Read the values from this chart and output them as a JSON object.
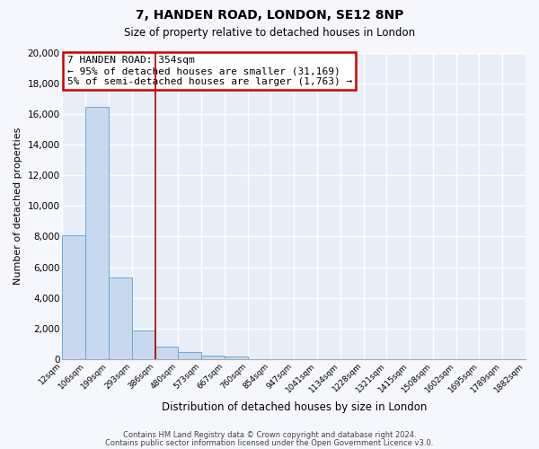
{
  "title": "7, HANDEN ROAD, LONDON, SE12 8NP",
  "subtitle": "Size of property relative to detached houses in London",
  "xlabel": "Distribution of detached houses by size in London",
  "ylabel": "Number of detached properties",
  "bar_color": "#c8d8ee",
  "bar_edge_color": "#6aaad4",
  "plot_bg_color": "#e8eef8",
  "fig_bg_color": "#f5f7fc",
  "grid_color": "#ffffff",
  "bin_labels": [
    "12sqm",
    "106sqm",
    "199sqm",
    "293sqm",
    "386sqm",
    "480sqm",
    "573sqm",
    "667sqm",
    "760sqm",
    "854sqm",
    "947sqm",
    "1041sqm",
    "1134sqm",
    "1228sqm",
    "1321sqm",
    "1415sqm",
    "1508sqm",
    "1602sqm",
    "1695sqm",
    "1789sqm",
    "1882sqm"
  ],
  "bar_values": [
    8100,
    16500,
    5300,
    1850,
    800,
    430,
    230,
    180,
    0,
    0,
    0,
    0,
    0,
    0,
    0,
    0,
    0,
    0,
    0,
    0
  ],
  "red_line_bin": 4,
  "ylim": [
    0,
    20000
  ],
  "yticks": [
    0,
    2000,
    4000,
    6000,
    8000,
    10000,
    12000,
    14000,
    16000,
    18000,
    20000
  ],
  "annotation_title": "7 HANDEN ROAD: 354sqm",
  "annotation_line1": "← 95% of detached houses are smaller (31,169)",
  "annotation_line2": "5% of semi-detached houses are larger (1,763) →",
  "annotation_box_color": "#ffffff",
  "annotation_box_edge": "#cc0000",
  "footer1": "Contains HM Land Registry data © Crown copyright and database right 2024.",
  "footer2": "Contains public sector information licensed under the Open Government Licence v3.0."
}
